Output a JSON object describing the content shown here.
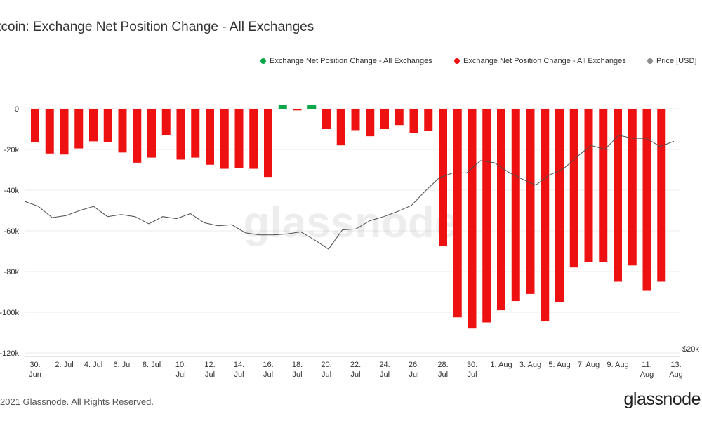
{
  "header": {
    "title": "itcoin: Exchange Net Position Change - All Exchanges"
  },
  "legend": {
    "items": [
      {
        "label": "Exchange Net Position Change - All Exchanges",
        "color": "#0aa648"
      },
      {
        "label": "Exchange Net Position Change - All Exchanges",
        "color": "#ee1111"
      },
      {
        "label": "Price [USD]",
        "color": "#8c8c8c"
      }
    ]
  },
  "footer": {
    "copyright": "2021 Glassnode. All Rights Reserved.",
    "brand": "glassnode"
  },
  "chart_data": {
    "type": "bar",
    "watermark": "glassnode",
    "y_axis": {
      "min": -120000,
      "max": 0,
      "ticks": [
        0,
        -20000,
        -40000,
        -60000,
        -80000,
        -100000,
        -120000
      ],
      "tick_labels": [
        "0",
        "-20k",
        "-40k",
        "-60k",
        "-80k",
        "-100k",
        "-120k"
      ]
    },
    "y2_axis": {
      "label": "$20k"
    },
    "x_labels": [
      {
        "index": 0,
        "lines": [
          "30.",
          "Jun"
        ]
      },
      {
        "index": 2,
        "lines": [
          "2. Jul"
        ]
      },
      {
        "index": 4,
        "lines": [
          "4. Jul"
        ]
      },
      {
        "index": 6,
        "lines": [
          "6. Jul"
        ]
      },
      {
        "index": 8,
        "lines": [
          "8. Jul"
        ]
      },
      {
        "index": 10,
        "lines": [
          "10.",
          "Jul"
        ]
      },
      {
        "index": 12,
        "lines": [
          "12.",
          "Jul"
        ]
      },
      {
        "index": 14,
        "lines": [
          "14.",
          "Jul"
        ]
      },
      {
        "index": 16,
        "lines": [
          "16.",
          "Jul"
        ]
      },
      {
        "index": 18,
        "lines": [
          "18.",
          "Jul"
        ]
      },
      {
        "index": 20,
        "lines": [
          "20.",
          "Jul"
        ]
      },
      {
        "index": 22,
        "lines": [
          "22.",
          "Jul"
        ]
      },
      {
        "index": 24,
        "lines": [
          "24.",
          "Jul"
        ]
      },
      {
        "index": 26,
        "lines": [
          "26.",
          "Jul"
        ]
      },
      {
        "index": 28,
        "lines": [
          "28.",
          "Jul"
        ]
      },
      {
        "index": 30,
        "lines": [
          "30.",
          "Jul"
        ]
      },
      {
        "index": 32,
        "lines": [
          "1. Aug"
        ]
      },
      {
        "index": 34,
        "lines": [
          "3. Aug"
        ]
      },
      {
        "index": 36,
        "lines": [
          "5. Aug"
        ]
      },
      {
        "index": 38,
        "lines": [
          "7. Aug"
        ]
      },
      {
        "index": 40,
        "lines": [
          "9. Aug"
        ]
      },
      {
        "index": 42,
        "lines": [
          "11.",
          "Aug"
        ]
      },
      {
        "index": 44,
        "lines": [
          "13.",
          "Aug"
        ]
      }
    ],
    "series": [
      {
        "name": "Exchange Net Position Change - All Exchanges",
        "kind": "bar",
        "color_positive": "#0aa648",
        "color_negative": "#ee1111",
        "values": [
          -16500,
          -22000,
          -22500,
          -19500,
          -16000,
          -16500,
          -21500,
          -26500,
          -24000,
          -13000,
          -25000,
          -24000,
          -27500,
          -29500,
          -29000,
          -29500,
          -33500,
          2000,
          -800,
          2000,
          -10000,
          -18000,
          -10500,
          -13500,
          -10000,
          -8000,
          -12000,
          -11000,
          -67500,
          -102500,
          -108000,
          -105000,
          -99000,
          -94500,
          -91000,
          -104500,
          -95000,
          -78000,
          -75500,
          -75500,
          -85000,
          -77000,
          -89500,
          -85000
        ]
      },
      {
        "name": "Price [USD]",
        "kind": "line",
        "color": "#4d4d4d",
        "values": [
          -45500,
          -48000,
          -53500,
          -52500,
          -50000,
          -48000,
          -53000,
          -52000,
          -53000,
          -56500,
          -53000,
          -54000,
          -51500,
          -56000,
          -57500,
          -57000,
          -61000,
          -62000,
          -62000,
          -61500,
          -60500,
          -64500,
          -69000,
          -59500,
          -59000,
          -55000,
          -53000,
          -50500,
          -47500,
          -40500,
          -34000,
          -31500,
          -31500,
          -25500,
          -26500,
          -31000,
          -34500,
          -37500,
          -32500,
          -29500,
          -23500,
          -18000,
          -20000,
          -13000,
          -14500,
          -14500,
          -18500,
          -16000
        ]
      }
    ]
  }
}
